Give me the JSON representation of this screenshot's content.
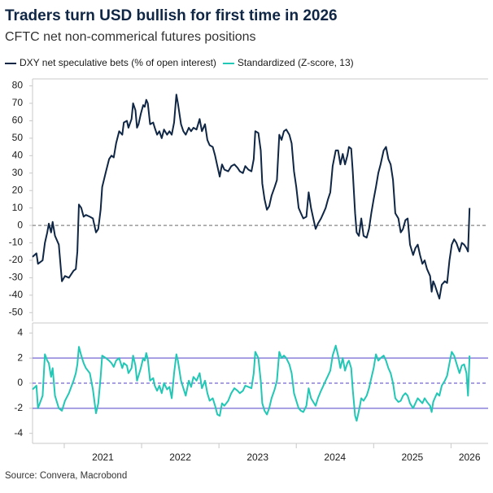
{
  "title": "Traders turn USD bullish for first time in 2026",
  "subtitle": "CFTC net non-commerical futures positions",
  "source": "Source: Convera, Macrobond",
  "chart_data": {
    "type": "line",
    "legend": "top-left",
    "x": [
      2020.59,
      2020.64,
      2020.66,
      2020.72,
      2020.75,
      2020.78,
      2020.8,
      2020.83,
      2020.85,
      2020.88,
      2020.93,
      2020.97,
      2021.01,
      2021.06,
      2021.12,
      2021.15,
      2021.17,
      2021.19,
      2021.22,
      2021.25,
      2021.28,
      2021.33,
      2021.37,
      2021.41,
      2021.44,
      2021.47,
      2021.49,
      2021.54,
      2021.58,
      2021.61,
      2021.64,
      2021.67,
      2021.71,
      2021.75,
      2021.77,
      2021.81,
      2021.83,
      2021.87,
      2021.89,
      2021.92,
      2021.94,
      2021.96,
      2021.99,
      2022.02,
      2022.04,
      2022.06,
      2022.08,
      2022.11,
      2022.15,
      2022.17,
      2022.2,
      2022.23,
      2022.26,
      2022.29,
      2022.33,
      2022.36,
      2022.39,
      2022.42,
      2022.45,
      2022.47,
      2022.51,
      2022.54,
      2022.57,
      2022.61,
      2022.64,
      2022.67,
      2022.71,
      2022.75,
      2022.78,
      2022.82,
      2022.85,
      2022.88,
      2022.92,
      2022.95,
      2022.98,
      2023.01,
      2023.04,
      2023.07,
      2023.12,
      2023.16,
      2023.2,
      2023.24,
      2023.27,
      2023.31,
      2023.34,
      2023.38,
      2023.42,
      2023.45,
      2023.47,
      2023.51,
      2023.54,
      2023.56,
      2023.59,
      2023.62,
      2023.65,
      2023.68,
      2023.72,
      2023.75,
      2023.78,
      2023.81,
      2023.84,
      2023.87,
      2023.91,
      2023.94,
      2023.97,
      2024.0,
      2024.03,
      2024.06,
      2024.09,
      2024.13,
      2024.16,
      2024.19,
      2024.22,
      2024.25,
      2024.28,
      2024.32,
      2024.35,
      2024.38,
      2024.41,
      2024.44,
      2024.47,
      2024.51,
      2024.54,
      2024.57,
      2024.6,
      2024.63,
      2024.66,
      2024.68,
      2024.71,
      2024.73,
      2024.76,
      2024.78,
      2024.81,
      2024.84,
      2024.87,
      2024.91,
      2024.94,
      2024.97,
      2025.0,
      2025.03,
      2025.06,
      2025.09,
      2025.13,
      2025.16,
      2025.19,
      2025.22,
      2025.25,
      2025.28,
      2025.32,
      2025.35,
      2025.38,
      2025.41,
      2025.44,
      2025.47,
      2025.51,
      2025.54,
      2025.57,
      2025.6,
      2025.63,
      2025.66,
      2025.69,
      2025.73,
      2025.75,
      2025.77,
      2025.79,
      2025.82,
      2025.85,
      2025.88,
      2025.92,
      2025.95,
      2025.98,
      2026.01,
      2026.04,
      2026.07,
      2026.11,
      2026.14,
      2026.17,
      2026.2,
      2026.22,
      2026.24
    ],
    "xlim": [
      2020.59,
      2026.48
    ],
    "xticks": [
      2021,
      2022,
      2023,
      2024,
      2025,
      2026
    ],
    "panels": [
      {
        "ylim": [
          -55,
          84
        ],
        "yticks": [
          -50,
          -40,
          -30,
          -20,
          -10,
          0,
          10,
          20,
          30,
          40,
          50,
          60,
          70,
          80
        ],
        "reference_lines": [
          {
            "value": 0,
            "style": "dashed",
            "color": "#9a9a9a"
          }
        ],
        "series": [
          {
            "name": "DXY net speculative bets (% of open interest)",
            "color": "#0f2645",
            "values": [
              -18,
              -16,
              -22,
              -20,
              -10,
              -4,
              1,
              -4,
              2,
              -6,
              -11,
              -32,
              -29,
              -30,
              -26,
              -25,
              -15,
              12,
              10,
              5,
              6,
              5,
              4,
              -4,
              -2,
              9,
              22,
              31,
              38,
              40,
              39,
              47,
              54,
              52,
              59,
              60,
              56,
              61,
              70,
              66,
              56,
              58,
              64,
              69,
              68,
              72,
              70,
              58,
              59,
              56,
              52,
              54,
              50,
              55,
              52,
              54,
              52,
              59,
              75,
              70,
              58,
              54,
              52,
              56,
              54,
              56,
              55,
              61,
              54,
              58,
              49,
              46,
              45,
              40,
              34,
              28,
              35,
              32,
              31,
              34,
              35,
              33,
              31,
              30,
              34,
              32,
              31,
              38,
              54,
              53,
              43,
              24,
              15,
              9,
              11,
              17,
              22,
              26,
              52,
              49,
              54,
              55,
              52,
              47,
              31,
              22,
              10,
              7,
              4,
              5,
              19,
              10,
              4,
              -2,
              1,
              4,
              7,
              10,
              15,
              19,
              34,
              43,
              43,
              35,
              41,
              35,
              40,
              45,
              44,
              31,
              7,
              -4,
              -6,
              4,
              -6,
              -7,
              -2,
              7,
              15,
              22,
              30,
              35,
              43,
              45,
              38,
              35,
              26,
              7,
              4,
              -4,
              -2,
              3,
              4,
              -11,
              -17,
              -13,
              -11,
              -17,
              -22,
              -20,
              -25,
              -29,
              -38,
              -32,
              -34,
              -38,
              -42,
              -34,
              -32,
              -33,
              -20,
              -11,
              -8,
              -10,
              -15,
              -10,
              -11,
              -13,
              -15,
              10
            ]
          }
        ]
      },
      {
        "ylim": [
          -4.8,
          4.8
        ],
        "yticks": [
          -4,
          -2,
          0,
          2,
          4
        ],
        "reference_lines": [
          {
            "value": -2,
            "style": "solid",
            "color": "#8b80d9"
          },
          {
            "value": 0,
            "style": "dashed",
            "color": "#8b80d9"
          },
          {
            "value": 2,
            "style": "solid",
            "color": "#8b80d9"
          }
        ],
        "series": [
          {
            "name": "Standardized (Z-score, 13)",
            "color": "#22c7b5",
            "values": [
              -0.5,
              -0.2,
              -2.0,
              -1.0,
              2.3,
              1.8,
              1.6,
              0.5,
              1.2,
              -1.0,
              -2.0,
              -2.2,
              -1.4,
              -0.8,
              0.2,
              0.8,
              1.5,
              2.9,
              2.2,
              1.6,
              1.2,
              0.8,
              -0.5,
              -2.4,
              -1.6,
              0.5,
              2.2,
              2.0,
              1.8,
              1.6,
              1.3,
              1.8,
              2.0,
              1.2,
              1.6,
              1.4,
              0.8,
              1.2,
              2.2,
              1.4,
              0.2,
              0.6,
              1.2,
              2.0,
              1.8,
              2.4,
              1.9,
              0.2,
              0.4,
              -0.2,
              -0.6,
              -0.2,
              -0.8,
              0,
              -0.5,
              -0.3,
              -1.2,
              0.8,
              2.3,
              1.8,
              0.2,
              -0.4,
              -1.0,
              0.2,
              -0.3,
              0.5,
              0.2,
              0.8,
              -0.4,
              0.2,
              -0.8,
              -1.4,
              -1.2,
              -1.8,
              -2.5,
              -2.6,
              -1.6,
              -1.8,
              -1.4,
              -0.8,
              -0.4,
              -0.6,
              -0.8,
              -0.6,
              -0.2,
              -0.3,
              -0.4,
              0.8,
              2.5,
              2.0,
              0.2,
              -1.6,
              -2.2,
              -2.5,
              -2.0,
              -1.2,
              -0.5,
              0.2,
              2.5,
              2.0,
              2.2,
              2.0,
              1.5,
              0.8,
              -0.8,
              -1.4,
              -2.0,
              -2.2,
              -2.3,
              -1.8,
              -0.4,
              -1.2,
              -1.5,
              -1.8,
              -1.2,
              -0.6,
              -0.2,
              0.2,
              0.6,
              1.0,
              2.2,
              3.0,
              2.2,
              1.2,
              2.0,
              1.0,
              1.6,
              1.8,
              1.2,
              -0.5,
              -2.6,
              -3.0,
              -2.2,
              -1.2,
              -1.4,
              -1.0,
              -0.4,
              0.4,
              1.2,
              2.3,
              1.8,
              2.0,
              2.2,
              1.8,
              1.2,
              0.8,
              0,
              -1.2,
              -1.5,
              -1.4,
              -1.0,
              -0.8,
              -1.0,
              -1.6,
              -2.0,
              -1.6,
              -1.2,
              -1.4,
              -1.6,
              -1.2,
              -1.5,
              -1.8,
              -2.3,
              -1.5,
              -1.2,
              -0.8,
              -1.0,
              -0.2,
              0.2,
              0.6,
              1.6,
              2.5,
              2.2,
              1.6,
              0.8,
              1.4,
              1.5,
              0.8,
              -1.0,
              2.2
            ]
          }
        ]
      }
    ]
  }
}
